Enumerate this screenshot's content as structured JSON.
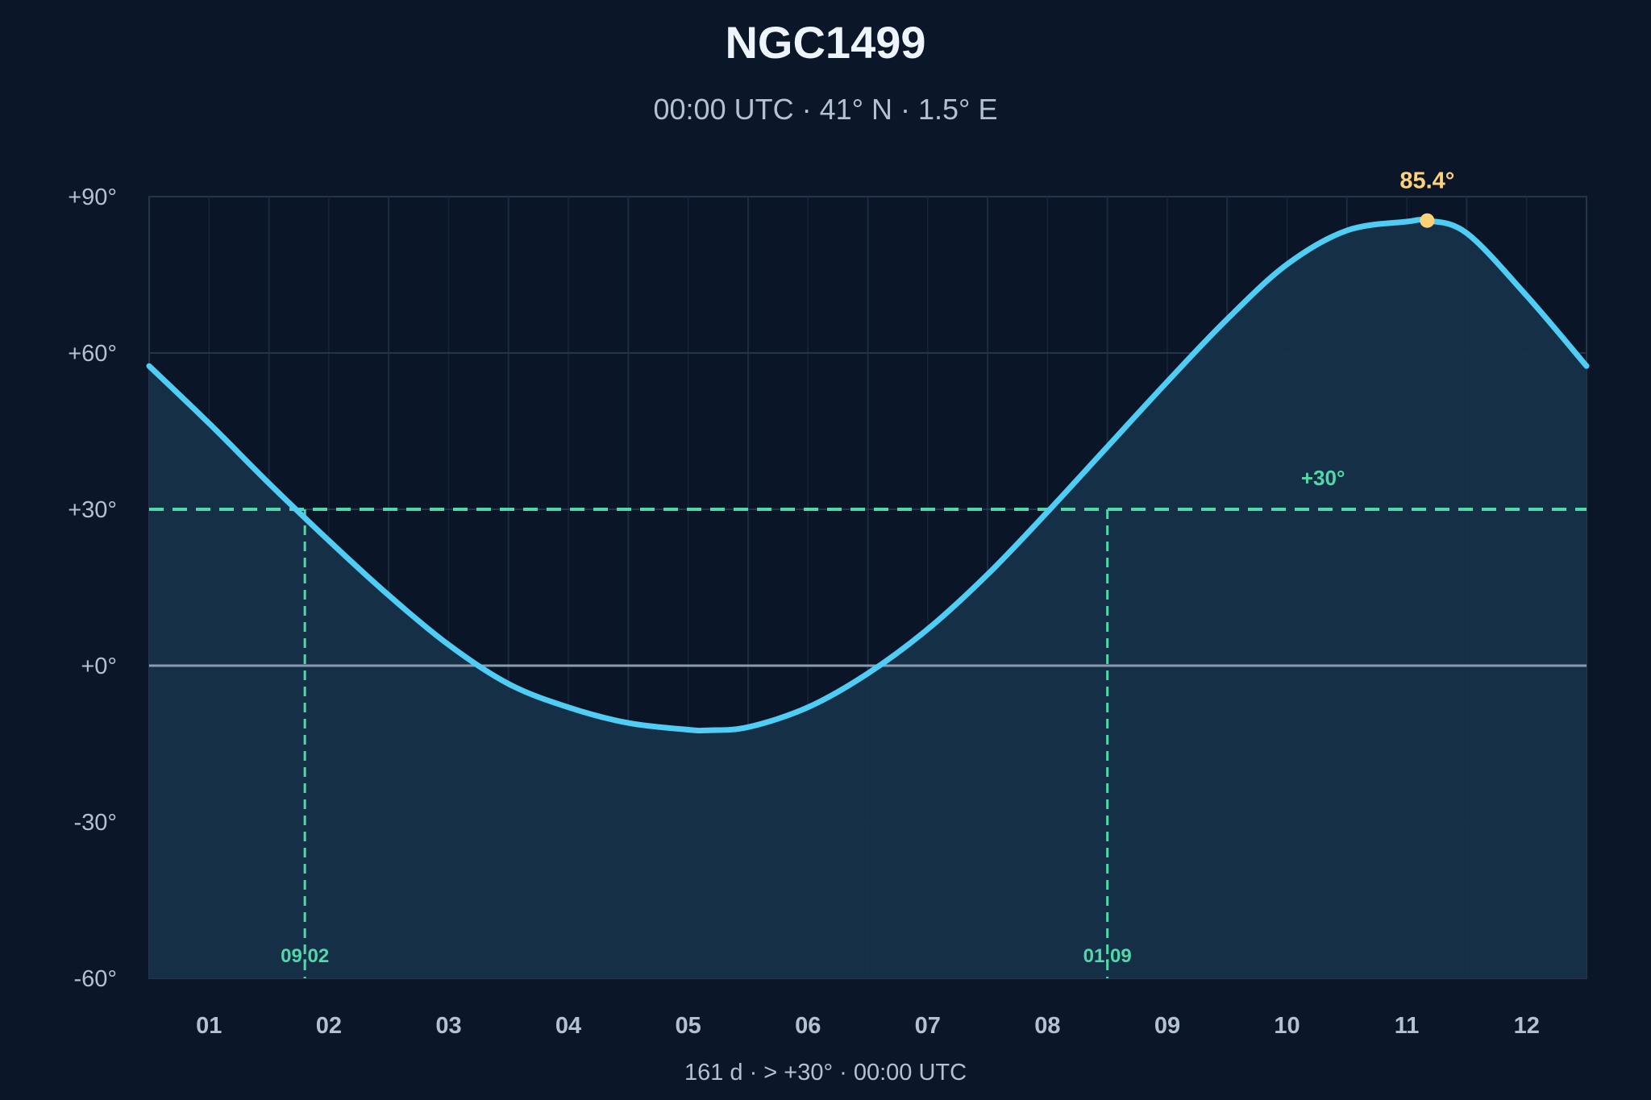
{
  "chart_data": {
    "type": "line",
    "title": "NGC1499",
    "subtitle": "00:00 UTC · 41° N · 1.5° E",
    "footer": "161 d  ·  > +30°  ·  00:00 UTC",
    "ylabel": "",
    "xlabel": "",
    "ylim": [
      -60,
      90
    ],
    "xlim": [
      0.5,
      12.5
    ],
    "yticks": [
      {
        "value": 90,
        "label": "+90°"
      },
      {
        "value": 60,
        "label": "+60°"
      },
      {
        "value": 30,
        "label": "+30°"
      },
      {
        "value": 0,
        "label": "+0°"
      },
      {
        "value": -30,
        "label": "-30°"
      },
      {
        "value": -60,
        "label": "-60°"
      }
    ],
    "categories": [
      "01",
      "02",
      "03",
      "04",
      "05",
      "06",
      "07",
      "08",
      "09",
      "10",
      "11",
      "12"
    ],
    "grid": true,
    "series": [
      {
        "name": "",
        "x": [
          0.5,
          1.0,
          1.5,
          2.0,
          2.5,
          3.0,
          3.5,
          4.0,
          4.5,
          5.0,
          5.17,
          5.5,
          6.0,
          6.5,
          7.0,
          7.5,
          8.0,
          8.5,
          9.0,
          9.5,
          10.0,
          10.5,
          11.0,
          11.17,
          11.5,
          12.0,
          12.5
        ],
        "y": [
          57.5,
          46.5,
          35.0,
          24.0,
          13.5,
          4.0,
          -3.5,
          -8.0,
          -11.0,
          -12.3,
          -12.4,
          -11.8,
          -8.0,
          -1.5,
          7.0,
          17.5,
          29.5,
          42.0,
          54.5,
          66.5,
          77.0,
          83.5,
          85.2,
          85.4,
          83.0,
          71.0,
          57.5
        ],
        "color": "#4fcdf5"
      }
    ],
    "threshold": {
      "value": 30,
      "label": "+30°",
      "color": "#4fd8a8"
    },
    "crossings": [
      {
        "x": 1.8,
        "label": "09.02"
      },
      {
        "x": 8.5,
        "label": "01.09"
      }
    ],
    "peak": {
      "x": 11.17,
      "y": 85.4,
      "label": "85.4°",
      "color": "#ffd27a"
    }
  }
}
